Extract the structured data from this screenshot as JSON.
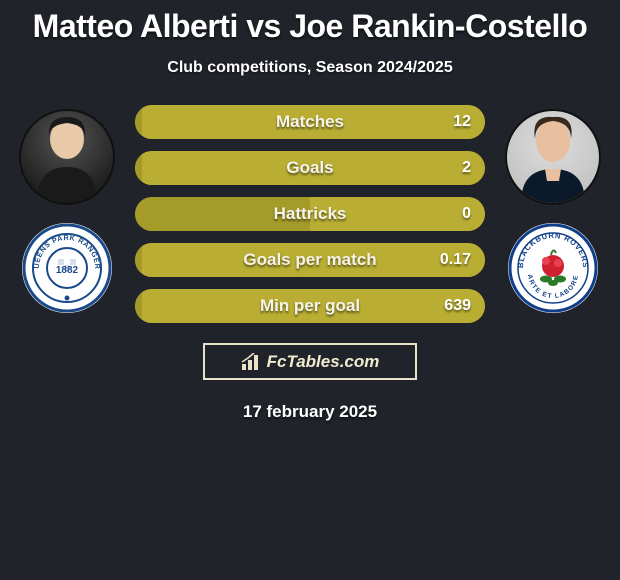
{
  "background_color": "#20242a",
  "title": "Matteo Alberti vs Joe Rankin-Costello",
  "title_fontsize": 32,
  "subtitle": "Club competitions, Season 2024/2025",
  "subtitle_fontsize": 16,
  "date": "17 february 2025",
  "brand": "FcTables.com",
  "brand_border_color": "#e8e2c8",
  "players": {
    "left": {
      "name": "Matteo Alberti",
      "club": "Queens Park Rangers",
      "club_primary": "#1a4a8a",
      "club_year": "1882"
    },
    "right": {
      "name": "Joe Rankin-Costello",
      "club": "Blackburn Rovers",
      "club_primary": "#0f3f8a"
    }
  },
  "bar_style": {
    "height": 34,
    "radius": 17,
    "label_fontsize": 17,
    "value_fontsize": 16,
    "left_color": "#a59b29",
    "right_color": "#b9ae33",
    "text_color": "#f6f4ea"
  },
  "stats": [
    {
      "label": "Matches",
      "left_val": "",
      "right_val": "12",
      "left_pct": 2,
      "right_pct": 98
    },
    {
      "label": "Goals",
      "left_val": "",
      "right_val": "2",
      "left_pct": 2,
      "right_pct": 98
    },
    {
      "label": "Hattricks",
      "left_val": "",
      "right_val": "0",
      "left_pct": 50,
      "right_pct": 50
    },
    {
      "label": "Goals per match",
      "left_val": "",
      "right_val": "0.17",
      "left_pct": 2,
      "right_pct": 98
    },
    {
      "label": "Min per goal",
      "left_val": "",
      "right_val": "639",
      "left_pct": 2,
      "right_pct": 98
    }
  ]
}
